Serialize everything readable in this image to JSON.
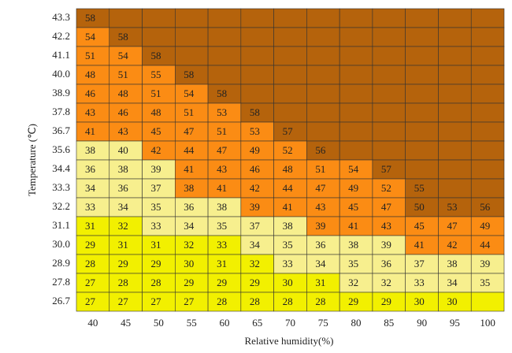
{
  "chart_data": {
    "type": "heatmap",
    "x_label": "Relative humidity(%)",
    "y_label": "Temperature (℃)",
    "x_categories": [
      40,
      45,
      50,
      55,
      60,
      65,
      70,
      75,
      80,
      85,
      90,
      95,
      100
    ],
    "y_categories": [
      "43.3",
      "42.2",
      "41.1",
      "40.0",
      "38.9",
      "37.8",
      "36.7",
      "35.6",
      "34.4",
      "33.3",
      "32.2",
      "31.1",
      "30.0",
      "28.9",
      "27.8",
      "26.7"
    ],
    "values": [
      [
        58,
        null,
        null,
        null,
        null,
        null,
        null,
        null,
        null,
        null,
        null,
        null,
        null
      ],
      [
        54,
        58,
        null,
        null,
        null,
        null,
        null,
        null,
        null,
        null,
        null,
        null,
        null
      ],
      [
        51,
        54,
        58,
        null,
        null,
        null,
        null,
        null,
        null,
        null,
        null,
        null,
        null
      ],
      [
        48,
        51,
        55,
        58,
        null,
        null,
        null,
        null,
        null,
        null,
        null,
        null,
        null
      ],
      [
        46,
        48,
        51,
        54,
        58,
        null,
        null,
        null,
        null,
        null,
        null,
        null,
        null
      ],
      [
        43,
        46,
        48,
        51,
        53,
        58,
        null,
        null,
        null,
        null,
        null,
        null,
        null
      ],
      [
        41,
        43,
        45,
        47,
        51,
        53,
        57,
        null,
        null,
        null,
        null,
        null,
        null
      ],
      [
        38,
        40,
        42,
        44,
        47,
        49,
        52,
        56,
        null,
        null,
        null,
        null,
        null
      ],
      [
        36,
        38,
        39,
        41,
        43,
        46,
        48,
        51,
        54,
        57,
        null,
        null,
        null
      ],
      [
        34,
        36,
        37,
        38,
        41,
        42,
        44,
        47,
        49,
        52,
        55,
        null,
        null
      ],
      [
        33,
        34,
        35,
        36,
        38,
        39,
        41,
        43,
        45,
        47,
        50,
        53,
        56
      ],
      [
        31,
        32,
        33,
        34,
        35,
        37,
        38,
        39,
        41,
        43,
        45,
        47,
        49
      ],
      [
        29,
        31,
        31,
        32,
        33,
        34,
        35,
        36,
        38,
        39,
        41,
        42,
        44
      ],
      [
        28,
        29,
        29,
        30,
        31,
        32,
        33,
        34,
        35,
        36,
        37,
        38,
        39
      ],
      [
        27,
        28,
        28,
        29,
        29,
        29,
        30,
        31,
        32,
        32,
        33,
        34,
        35
      ],
      [
        27,
        27,
        27,
        27,
        28,
        28,
        28,
        28,
        29,
        29,
        30,
        30,
        null
      ]
    ],
    "colors": [
      "#f2f000",
      "#f7ef8e",
      "#fb8c14",
      "#b5630c"
    ],
    "color_levels": [
      [
        3,
        3,
        3,
        3,
        3,
        3,
        3,
        3,
        3,
        3,
        3,
        3,
        3
      ],
      [
        2,
        3,
        3,
        3,
        3,
        3,
        3,
        3,
        3,
        3,
        3,
        3,
        3
      ],
      [
        2,
        2,
        3,
        3,
        3,
        3,
        3,
        3,
        3,
        3,
        3,
        3,
        3
      ],
      [
        2,
        2,
        2,
        3,
        3,
        3,
        3,
        3,
        3,
        3,
        3,
        3,
        3
      ],
      [
        2,
        2,
        2,
        2,
        3,
        3,
        3,
        3,
        3,
        3,
        3,
        3,
        3
      ],
      [
        2,
        2,
        2,
        2,
        2,
        3,
        3,
        3,
        3,
        3,
        3,
        3,
        3
      ],
      [
        2,
        2,
        2,
        2,
        2,
        2,
        3,
        3,
        3,
        3,
        3,
        3,
        3
      ],
      [
        1,
        1,
        2,
        2,
        2,
        2,
        2,
        3,
        3,
        3,
        3,
        3,
        3
      ],
      [
        1,
        1,
        1,
        2,
        2,
        2,
        2,
        2,
        2,
        3,
        3,
        3,
        3
      ],
      [
        1,
        1,
        1,
        2,
        2,
        2,
        2,
        2,
        2,
        2,
        3,
        3,
        3
      ],
      [
        1,
        1,
        1,
        1,
        1,
        2,
        2,
        2,
        2,
        2,
        3,
        3,
        3
      ],
      [
        0,
        0,
        1,
        1,
        1,
        1,
        1,
        2,
        2,
        2,
        2,
        2,
        2
      ],
      [
        0,
        0,
        0,
        0,
        0,
        1,
        1,
        1,
        1,
        1,
        2,
        2,
        2
      ],
      [
        0,
        0,
        0,
        0,
        0,
        0,
        1,
        1,
        1,
        1,
        1,
        1,
        1
      ],
      [
        0,
        0,
        0,
        0,
        0,
        0,
        0,
        0,
        1,
        1,
        1,
        1,
        1
      ],
      [
        0,
        0,
        0,
        0,
        0,
        0,
        0,
        0,
        0,
        0,
        0,
        0,
        0
      ]
    ]
  }
}
